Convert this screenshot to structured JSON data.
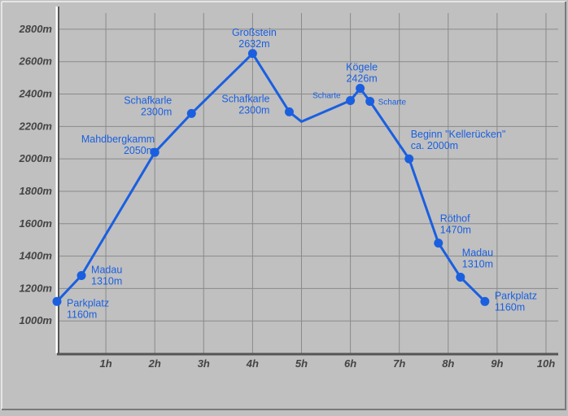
{
  "chart_data": {
    "type": "line",
    "title": "",
    "xlabel": "",
    "ylabel": "",
    "xlim": [
      0,
      10.25
    ],
    "ylim": [
      800,
      2900
    ],
    "y_ticks": [
      {
        "value": 1000,
        "label": "1000m"
      },
      {
        "value": 1200,
        "label": "1200m"
      },
      {
        "value": 1400,
        "label": "1400m"
      },
      {
        "value": 1600,
        "label": "1600m"
      },
      {
        "value": 1800,
        "label": "1800m"
      },
      {
        "value": 2000,
        "label": "2000m"
      },
      {
        "value": 2200,
        "label": "2200m"
      },
      {
        "value": 2400,
        "label": "2400m"
      },
      {
        "value": 2600,
        "label": "2600m"
      },
      {
        "value": 2800,
        "label": "2800m"
      }
    ],
    "x_ticks": [
      {
        "value": 1,
        "label": "1h"
      },
      {
        "value": 2,
        "label": "2h"
      },
      {
        "value": 3,
        "label": "3h"
      },
      {
        "value": 4,
        "label": "4h"
      },
      {
        "value": 5,
        "label": "5h"
      },
      {
        "value": 6,
        "label": "6h"
      },
      {
        "value": 7,
        "label": "7h"
      },
      {
        "value": 8,
        "label": "8h"
      },
      {
        "value": 9,
        "label": "9h"
      },
      {
        "value": 10,
        "label": "10h"
      }
    ],
    "grid": true,
    "line_color": "#1a5fe0",
    "label_color": "#1a5fe0",
    "background": "#c0c0c0",
    "grid_color": "#8a8a8a",
    "points": [
      {
        "x": 0.0,
        "y": 1120,
        "marker": true,
        "label": [
          "Parkplatz",
          "1160m"
        ],
        "label_pos": "right-below",
        "label_size": "normal"
      },
      {
        "x": 0.5,
        "y": 1280,
        "marker": true,
        "label": [
          "Madau",
          "1310m"
        ],
        "label_pos": "right",
        "label_size": "normal"
      },
      {
        "x": 2.0,
        "y": 2040,
        "marker": true,
        "label": [
          "Mahdbergkamm",
          "2050m"
        ],
        "label_pos": "left-above",
        "label_size": "normal"
      },
      {
        "x": 2.75,
        "y": 2280,
        "marker": true,
        "label": [
          "Schafkarle",
          "2300m"
        ],
        "label_pos": "left",
        "label_size": "normal"
      },
      {
        "x": 4.0,
        "y": 2650,
        "marker": true,
        "label": [
          "Großstein",
          "2632m"
        ],
        "label_pos": "above",
        "label_size": "normal"
      },
      {
        "x": 4.75,
        "y": 2290,
        "marker": true,
        "label": [
          "Schafkarle",
          "2300m"
        ],
        "label_pos": "left",
        "label_size": "normal"
      },
      {
        "x": 5.0,
        "y": 2230,
        "marker": false
      },
      {
        "x": 6.0,
        "y": 2360,
        "marker": true,
        "label": [
          "Scharte"
        ],
        "label_pos": "left-above",
        "label_size": "small"
      },
      {
        "x": 6.2,
        "y": 2435,
        "marker": true,
        "label": [
          "Kögele",
          "2426m"
        ],
        "label_pos": "above",
        "label_size": "normal"
      },
      {
        "x": 6.4,
        "y": 2355,
        "marker": true,
        "label": [
          "Scharte"
        ],
        "label_pos": "right",
        "label_size": "small"
      },
      {
        "x": 7.2,
        "y": 2000,
        "marker": true,
        "label": [
          "Beginn \"Kellerücken\"",
          "ca. 2000m"
        ],
        "label_pos": "right-above",
        "label_size": "normal"
      },
      {
        "x": 7.8,
        "y": 1480,
        "marker": true,
        "label": [
          "Röthof",
          "1470m"
        ],
        "label_pos": "right-above",
        "label_size": "normal"
      },
      {
        "x": 8.25,
        "y": 1270,
        "marker": true,
        "label": [
          "Madau",
          "1310m"
        ],
        "label_pos": "right-above",
        "label_size": "normal"
      },
      {
        "x": 8.75,
        "y": 1120,
        "marker": true,
        "label": [
          "Parkplatz",
          "1160m"
        ],
        "label_pos": "right",
        "label_size": "normal"
      }
    ]
  }
}
